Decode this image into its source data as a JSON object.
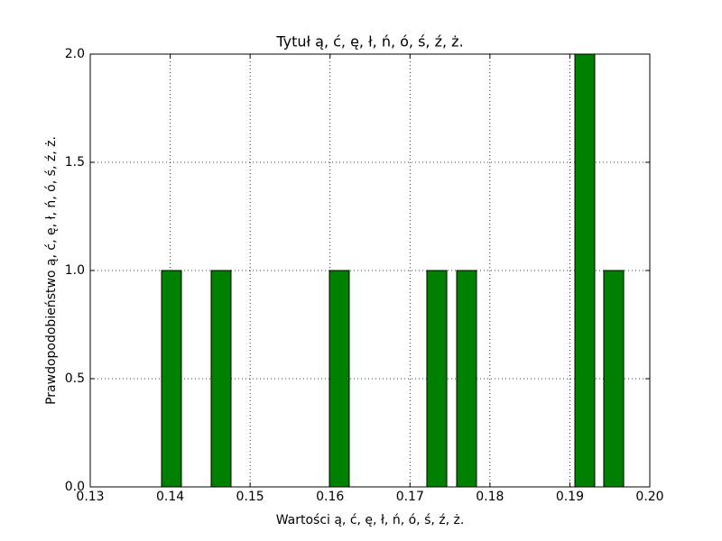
{
  "chart_data": {
    "type": "histogram",
    "title": "Tytuł ą, ć, ę, ł, ń, ó, ś, ź, ż.",
    "xlabel": "Wartości ą, ć, ę, ł, ń, ó, ś, ź, ż.",
    "ylabel": "Prawdopodobieństwo ą, ć, ę, ł, ń, ó, ś, ź, ż.",
    "bins": [
      0.13892,
      0.1414,
      0.14513,
      0.14761,
      0.15992,
      0.1624,
      0.17211,
      0.1746,
      0.17584,
      0.17832,
      0.19063,
      0.19311,
      0.19424,
      0.19673
    ],
    "values": [
      1,
      0,
      1,
      0,
      1,
      0,
      1,
      0,
      1,
      0,
      2,
      0,
      1
    ],
    "color": "#008000",
    "xlim": [
      0.13,
      0.2
    ],
    "xticks": [
      0.13,
      0.14,
      0.15,
      0.16,
      0.17,
      0.18,
      0.19,
      {
        "value": 0.2,
        "label": "0.20"
      }
    ],
    "ylim": [
      0,
      2
    ],
    "yticks": [
      {
        "value": 0,
        "label": "0.0"
      },
      0.5,
      {
        "value": 1,
        "label": "1.0"
      },
      1.5,
      {
        "value": 2,
        "label": "2.0"
      }
    ],
    "grid": true
  }
}
